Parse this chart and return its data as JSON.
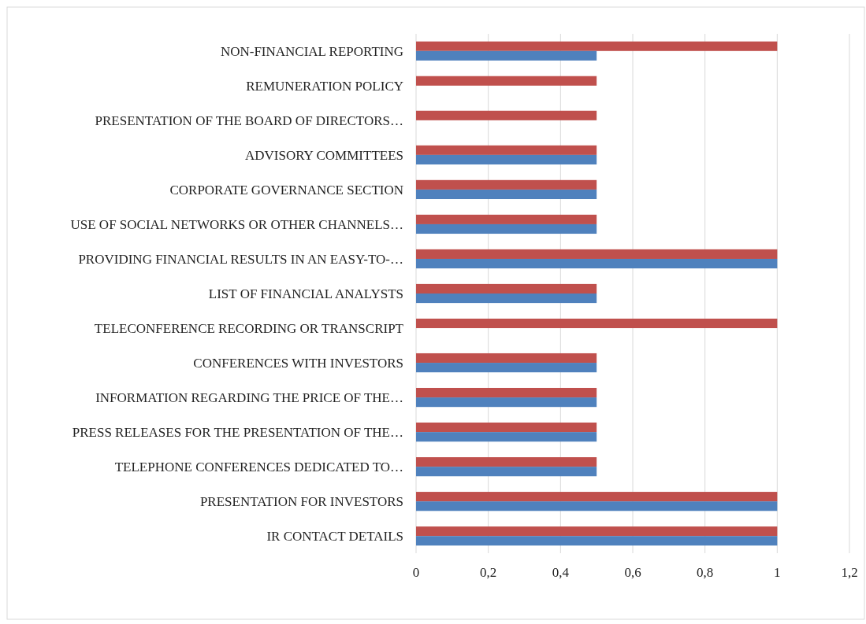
{
  "chart_data": {
    "type": "bar",
    "orientation": "horizontal",
    "categories": [
      "NON-FINANCIAL REPORTING",
      "REMUNERATION POLICY",
      "PRESENTATION OF THE BOARD OF DIRECTORS…",
      "ADVISORY COMMITTEES",
      "CORPORATE GOVERNANCE SECTION",
      "USE OF SOCIAL NETWORKS OR OTHER CHANNELS…",
      "PROVIDING FINANCIAL RESULTS IN AN EASY-TO-…",
      "LIST OF FINANCIAL ANALYSTS",
      "TELECONFERENCE RECORDING OR TRANSCRIPT",
      "CONFERENCES WITH INVESTORS",
      "INFORMATION REGARDING THE PRICE OF THE…",
      "PRESS RELEASES FOR THE PRESENTATION OF THE…",
      "TELEPHONE CONFERENCES DEDICATED TO…",
      "PRESENTATION FOR INVESTORS",
      "IR CONTACT DETAILS"
    ],
    "series": [
      {
        "color": "#c0504d",
        "values": [
          1,
          0.5,
          0.5,
          0.5,
          0.5,
          0.5,
          1,
          0.5,
          1,
          0.5,
          0.5,
          0.5,
          0.5,
          1,
          1
        ]
      },
      {
        "color": "#4f81bd",
        "values": [
          0.5,
          0,
          0,
          0.5,
          0.5,
          0.5,
          1,
          0.5,
          0,
          0.5,
          0.5,
          0.5,
          0.5,
          1,
          1
        ]
      }
    ],
    "xlim": [
      0,
      1.2
    ],
    "xticks": [
      0,
      {
        "value": 0.2,
        "label": "0,2"
      },
      {
        "value": 0.4,
        "label": "0,4"
      },
      {
        "value": 0.6,
        "label": "0,6"
      },
      {
        "value": 0.8,
        "label": "0,8"
      },
      1,
      {
        "value": 1.2,
        "label": "1,2"
      }
    ],
    "grid": "x"
  }
}
